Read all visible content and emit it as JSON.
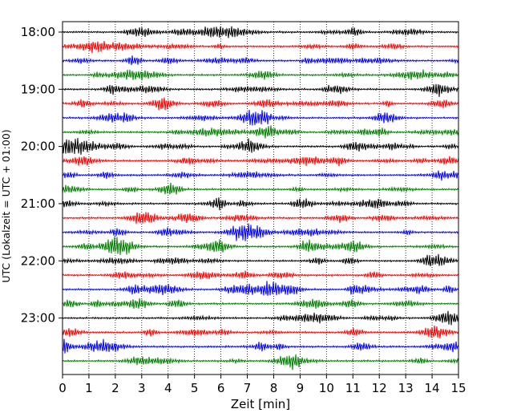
{
  "chart_data": {
    "type": "line",
    "title": "",
    "xlabel": "Zeit  [min]",
    "ylabel": "UTC (Lokalzeit = UTC + 01:00)",
    "xlim": [
      0,
      15
    ],
    "x_ticks": [
      "0",
      "1",
      "2",
      "3",
      "4",
      "5",
      "6",
      "7",
      "8",
      "9",
      "10",
      "11",
      "12",
      "13",
      "14",
      "15"
    ],
    "y_ticks": [
      "18:00",
      "19:00",
      "20:00",
      "21:00",
      "22:00",
      "23:00"
    ],
    "grid": "vertical dotted",
    "trace_interval_minutes": 15,
    "traces_start": "18:00",
    "trace_count": 24,
    "trace_colors": [
      "#000000",
      "#ff0000",
      "#0000ff",
      "#008000"
    ]
  }
}
